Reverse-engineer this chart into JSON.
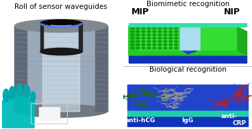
{
  "title_left": "Roll of sensor waveguides",
  "title_top_right": "Biomimetic recognition",
  "title_bottom_right": "Biological recognition",
  "label_MIP": "MIP",
  "label_NIP": "NIP",
  "label_anti_hCG": "anti-hCG",
  "label_IgG": "IgG",
  "label_anti_CRP_1": "anti-",
  "label_anti_CRP_2": "CRP",
  "bg_color": "#ffffff",
  "roll_bg": "#050505",
  "roll_silver": "#b8c8d5",
  "roll_light": "#ddeaf5",
  "roll_dark": "#607080",
  "roll_stripe": "#8899aa",
  "blue_ring": "#3366ff",
  "cyan_glove": "#00cccc",
  "chip_white": "#f0f0f0",
  "green_bright": "#22dd22",
  "green_dark": "#119911",
  "green_dot": "#117711",
  "blue_base": "#2233bb",
  "blue_dark": "#1122aa",
  "light_blue_waveguide": "#99ccee",
  "teal_edge": "#33ddaa",
  "bio_green": "#226622",
  "bio_red": "#bb1111",
  "bio_gray": "#999999",
  "bio_blue_base": "#1133cc",
  "bio_teal": "#22ccaa",
  "divider": "#aaaaaa",
  "title_fontsize": 7.5,
  "label_fontsize": 8,
  "small_fontsize": 6
}
